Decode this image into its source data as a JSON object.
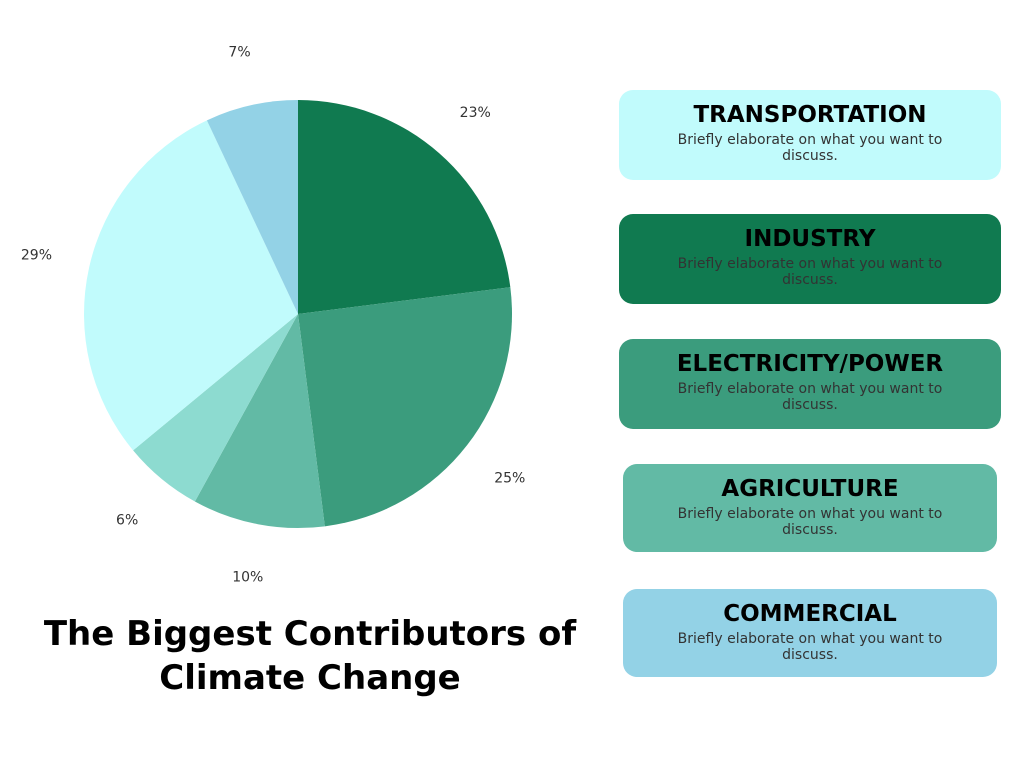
{
  "chart_data": {
    "type": "pie",
    "title": "The Biggest Contributors of Climate Change",
    "slices": [
      {
        "label": "23%",
        "value": 23,
        "color": "#107a50"
      },
      {
        "label": "25%",
        "value": 25,
        "color": "#3b9c7d"
      },
      {
        "label": "10%",
        "value": 10,
        "color": "#62baa5"
      },
      {
        "label": "6%",
        "value": 6,
        "color": "#8ddbd0"
      },
      {
        "label": "29%",
        "value": 29,
        "color": "#c1fbfc"
      },
      {
        "label": "7%",
        "value": 7,
        "color": "#93d2e6"
      }
    ]
  },
  "legend": [
    {
      "heading": "TRANSPORTATION",
      "text": "Briefly elaborate on what you want to discuss.",
      "color": "#c1fbfc"
    },
    {
      "heading": "INDUSTRY",
      "text": "Briefly elaborate on what you want to discuss.",
      "color": "#107a50"
    },
    {
      "heading": "ELECTRICITY/POWER",
      "text": "Briefly elaborate on what you want to discuss.",
      "color": "#3b9c7d"
    },
    {
      "heading": "AGRICULTURE",
      "text": "Briefly elaborate on what you want to discuss.",
      "color": "#62baa5"
    },
    {
      "heading": "COMMERCIAL",
      "text": "Briefly elaborate on what you want to discuss.",
      "color": "#93d2e6"
    }
  ]
}
